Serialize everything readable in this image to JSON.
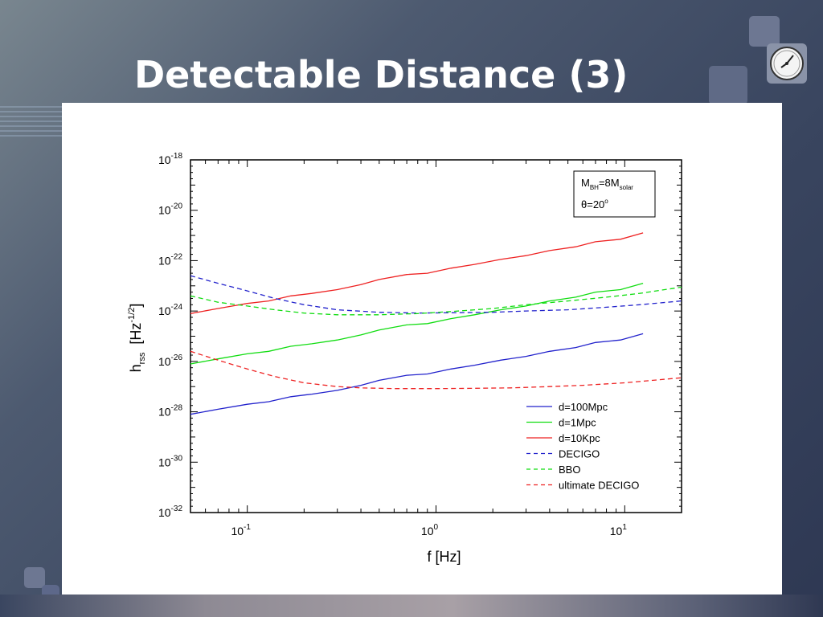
{
  "slide": {
    "title": "Detectable Distance (3)"
  },
  "colors": {
    "blue": "#2222cc",
    "green": "#11dd11",
    "red": "#ee2222"
  },
  "chart_data": {
    "type": "line",
    "x_scale": "log",
    "y_scale": "log",
    "xlim": [
      0.05,
      20
    ],
    "ylim": [
      1e-32,
      1e-18
    ],
    "xlabel": "f [Hz]",
    "ylabel": {
      "base": "h",
      "sub": "rss",
      "unit_open": "[Hz",
      "unit_sup": "-1/2",
      "unit_close": "]"
    },
    "x_ticks": [
      {
        "value": 0.1,
        "base": "10",
        "exp": "-1"
      },
      {
        "value": 1,
        "base": "10",
        "exp": "0"
      },
      {
        "value": 10,
        "base": "10",
        "exp": "1"
      }
    ],
    "y_ticks": [
      {
        "value": -18,
        "base": "10",
        "exp": "-18"
      },
      {
        "value": -20,
        "base": "10",
        "exp": "-20"
      },
      {
        "value": -22,
        "base": "10",
        "exp": "-22"
      },
      {
        "value": -24,
        "base": "10",
        "exp": "-24"
      },
      {
        "value": -26,
        "base": "10",
        "exp": "-26"
      },
      {
        "value": -28,
        "base": "10",
        "exp": "-28"
      },
      {
        "value": -30,
        "base": "10",
        "exp": "-30"
      },
      {
        "value": -32,
        "base": "10",
        "exp": "-32"
      }
    ],
    "annotation": {
      "line1": {
        "m": "M",
        "sub1": "BH",
        "eq": "=8M",
        "sub2": "solar"
      },
      "line2": {
        "theta": "θ",
        "eq": "=20",
        "sup": "o"
      }
    },
    "legend_position": "bottom-right",
    "series": [
      {
        "name": "d=100Mpc",
        "color": "#2222cc",
        "dash": false,
        "x": [
          0.05,
          0.07,
          0.1,
          0.13,
          0.17,
          0.22,
          0.3,
          0.4,
          0.5,
          0.7,
          0.9,
          1.2,
          1.6,
          2.2,
          3,
          4,
          5.5,
          7,
          9.5,
          12.5
        ],
        "y": [
          -28.1,
          -27.9,
          -27.7,
          -27.6,
          -27.4,
          -27.3,
          -27.15,
          -26.95,
          -26.75,
          -26.55,
          -26.5,
          -26.3,
          -26.15,
          -25.95,
          -25.8,
          -25.6,
          -25.45,
          -25.25,
          -25.15,
          -24.9
        ]
      },
      {
        "name": "d=1Mpc",
        "color": "#11dd11",
        "dash": false,
        "x": [
          0.05,
          0.07,
          0.1,
          0.13,
          0.17,
          0.22,
          0.3,
          0.4,
          0.5,
          0.7,
          0.9,
          1.2,
          1.6,
          2.2,
          3,
          4,
          5.5,
          7,
          9.5,
          12.5
        ],
        "y": [
          -26.1,
          -25.9,
          -25.7,
          -25.6,
          -25.4,
          -25.3,
          -25.15,
          -24.95,
          -24.75,
          -24.55,
          -24.5,
          -24.3,
          -24.15,
          -23.95,
          -23.8,
          -23.6,
          -23.45,
          -23.25,
          -23.15,
          -22.9
        ]
      },
      {
        "name": "d=10Kpc",
        "color": "#ee2222",
        "dash": false,
        "x": [
          0.05,
          0.07,
          0.1,
          0.13,
          0.17,
          0.22,
          0.3,
          0.4,
          0.5,
          0.7,
          0.9,
          1.2,
          1.6,
          2.2,
          3,
          4,
          5.5,
          7,
          9.5,
          12.5
        ],
        "y": [
          -24.1,
          -23.9,
          -23.7,
          -23.6,
          -23.4,
          -23.3,
          -23.15,
          -22.95,
          -22.75,
          -22.55,
          -22.5,
          -22.3,
          -22.15,
          -21.95,
          -21.8,
          -21.6,
          -21.45,
          -21.25,
          -21.15,
          -20.9
        ]
      },
      {
        "name": "DECIGO",
        "color": "#2222cc",
        "dash": true,
        "x": [
          0.05,
          0.07,
          0.1,
          0.14,
          0.2,
          0.3,
          0.5,
          0.8,
          1.2,
          2,
          3,
          5,
          8,
          12,
          20
        ],
        "y": [
          -22.6,
          -22.9,
          -23.2,
          -23.5,
          -23.75,
          -23.95,
          -24.05,
          -24.08,
          -24.07,
          -24.05,
          -24.0,
          -23.95,
          -23.85,
          -23.75,
          -23.6
        ]
      },
      {
        "name": "BBO",
        "color": "#11dd11",
        "dash": true,
        "x": [
          0.05,
          0.07,
          0.1,
          0.14,
          0.2,
          0.3,
          0.5,
          0.8,
          1.2,
          2,
          3,
          5,
          8,
          12,
          20
        ],
        "y": [
          -23.4,
          -23.65,
          -23.8,
          -23.95,
          -24.08,
          -24.15,
          -24.15,
          -24.1,
          -24.02,
          -23.9,
          -23.75,
          -23.6,
          -23.45,
          -23.3,
          -23.05
        ]
      },
      {
        "name": "ultimate DECIGO",
        "color": "#ee2222",
        "dash": true,
        "x": [
          0.05,
          0.07,
          0.1,
          0.14,
          0.2,
          0.3,
          0.4,
          0.6,
          1,
          1.5,
          2.5,
          4,
          6,
          10,
          20
        ],
        "y": [
          -25.6,
          -25.95,
          -26.3,
          -26.6,
          -26.85,
          -27.0,
          -27.05,
          -27.08,
          -27.08,
          -27.07,
          -27.05,
          -27.0,
          -26.95,
          -26.85,
          -26.65
        ]
      }
    ]
  }
}
